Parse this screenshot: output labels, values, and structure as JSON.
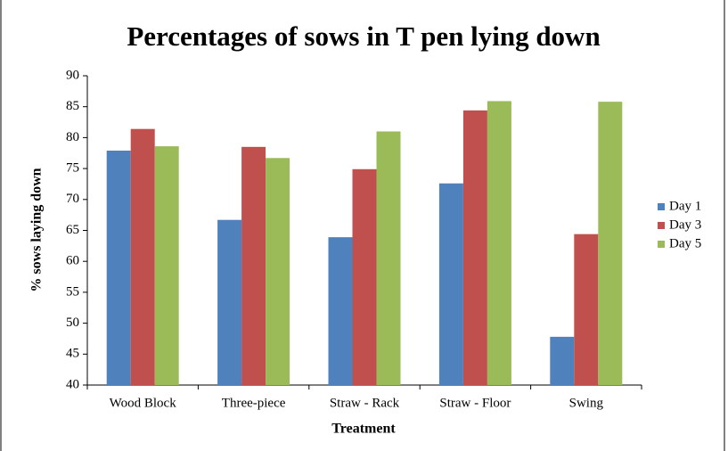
{
  "chart_data": {
    "type": "bar",
    "title": "Percentages of sows in T pen lying down",
    "x_label": "Treatment",
    "y_label": "% sows laying down",
    "categories": [
      "Wood Block",
      "Three-piece",
      "Straw - Rack",
      "Straw - Floor",
      "Swing"
    ],
    "series": [
      {
        "name": "Day 1",
        "color": "#4f81bd",
        "values": [
          77.9,
          66.7,
          63.9,
          72.6,
          47.8
        ]
      },
      {
        "name": "Day 3",
        "color": "#c0504d",
        "values": [
          81.4,
          78.5,
          74.9,
          84.4,
          64.4
        ]
      },
      {
        "name": "Day 5",
        "color": "#9bbb59",
        "values": [
          78.6,
          76.7,
          81,
          85.9,
          85.8
        ]
      }
    ],
    "ylim": [
      40,
      90
    ],
    "yticks": [
      40,
      45,
      50,
      55,
      60,
      65,
      70,
      75,
      80,
      85,
      90
    ],
    "legend": "right"
  }
}
